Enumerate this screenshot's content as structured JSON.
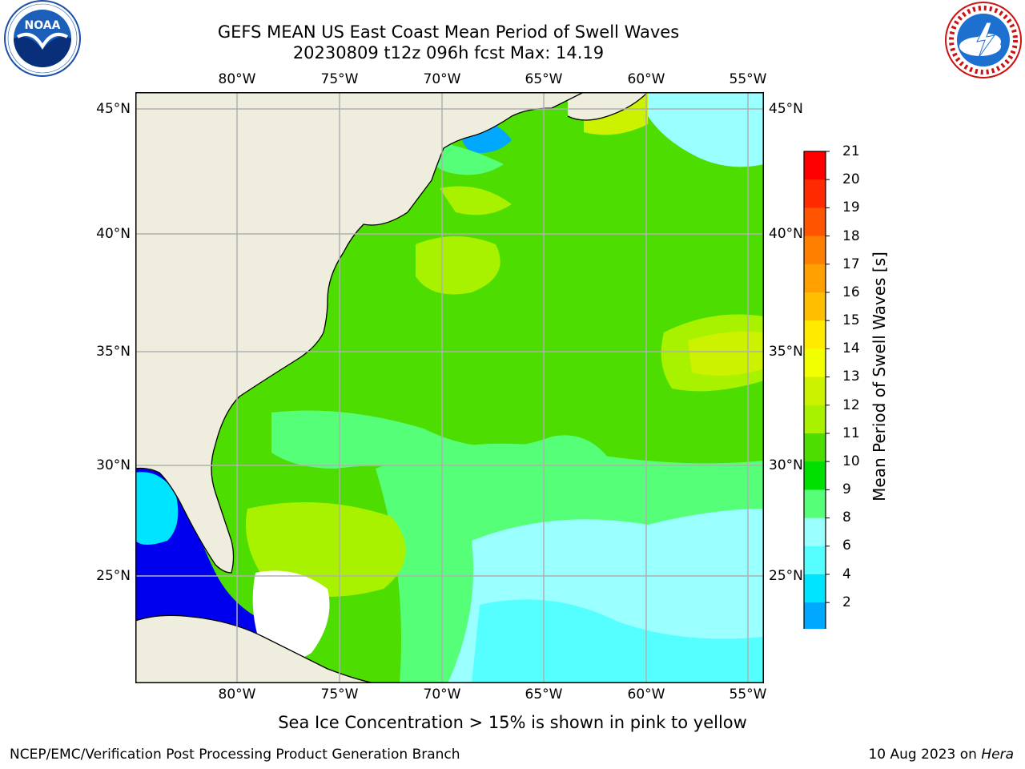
{
  "title": {
    "line1": "GEFS MEAN US East Coast Mean Period of Swell Waves",
    "line2": "20230809 t12z 096h fcst   Max: 14.19"
  },
  "logos": {
    "left": {
      "text": "NOAA",
      "ring_text": "NATIONAL OCEANIC AND ATMOSPHERIC ADMINISTRATION • U.S. DEPARTMENT OF COMMERCE"
    },
    "right": {
      "ring_text": "NATIONAL WEATHER SERVICE"
    }
  },
  "map": {
    "lon_labels": [
      "80°W",
      "75°W",
      "70°W",
      "65°W",
      "60°W",
      "55°W"
    ],
    "lat_labels_left": [
      "45°N",
      "40°N",
      "35°N",
      "30°N",
      "25°N"
    ],
    "lat_labels_right": [
      "45°N",
      "40°N",
      "35°N",
      "30°N",
      "25°N"
    ],
    "colors": {
      "land": "#efedde",
      "coast": "#000000",
      "grid": "#b0b0b0"
    }
  },
  "colorbar": {
    "title": "Mean Period of Swell Waves [s]",
    "ticks": [
      "21",
      "20",
      "19",
      "18",
      "17",
      "16",
      "15",
      "14",
      "13",
      "12",
      "11",
      "10",
      "9",
      "8",
      "6",
      "4",
      "2"
    ],
    "colors_top_to_bottom": [
      "#ff0000",
      "#ff2a00",
      "#ff5500",
      "#ff8000",
      "#ff9f00",
      "#ffbf00",
      "#ffea00",
      "#f2ff00",
      "#ccf200",
      "#a8f200",
      "#4ddd00",
      "#00e000",
      "#55ff77",
      "#99ffff",
      "#55ffff",
      "#00e5ff",
      "#00a8ff",
      "#0050ff"
    ],
    "extend_color": "#0000ee"
  },
  "note": "Sea Ice Concentration > 15% is shown in pink to yellow",
  "footer": {
    "left": "NCEP/EMC/Verification Post Processing Product Generation Branch",
    "right_prefix": "10 Aug 2023 on ",
    "right_italic": "Hera"
  }
}
